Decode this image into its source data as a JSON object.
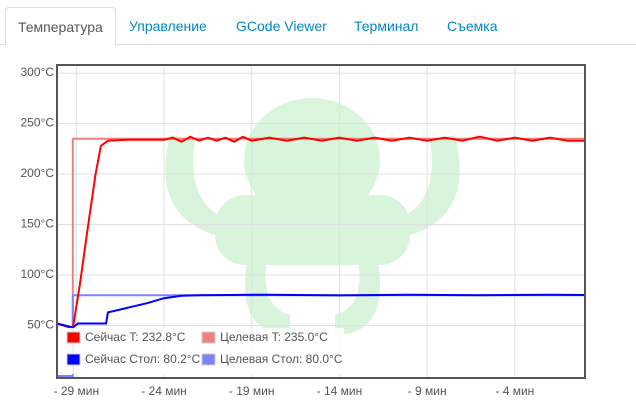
{
  "tabs": [
    "Температура",
    "Управление",
    "GCode Viewer",
    "Терминал",
    "Съемка"
  ],
  "chart_data": {
    "type": "line",
    "xlim": [
      -30.1,
      0
    ],
    "ylim": [
      -2,
      308
    ],
    "xticks": [
      {
        "value": -29,
        "label": "- 29 мин"
      },
      {
        "value": -24,
        "label": "- 24 мин"
      },
      {
        "value": -19,
        "label": "- 19 мин"
      },
      {
        "value": -14,
        "label": "- 14 мин"
      },
      {
        "value": -9,
        "label": "- 9 мин"
      },
      {
        "value": -4,
        "label": "- 4 мин"
      }
    ],
    "yticks": [
      {
        "value": 50,
        "label": "50°C"
      },
      {
        "value": 100,
        "label": "100°C"
      },
      {
        "value": 150,
        "label": "150°C"
      },
      {
        "value": 200,
        "label": "200°C"
      },
      {
        "value": 250,
        "label": "250°C"
      },
      {
        "value": 300,
        "label": "300°C"
      }
    ],
    "grid": true,
    "series": [
      {
        "name": "Сейчас T: 232.8°C",
        "color": "#ff0000",
        "x": [
          -30.1,
          -29.2,
          -28.8,
          -28.4,
          -27.9,
          -27.6,
          -27.2,
          -26,
          -24,
          -23.5,
          -23,
          -22.5,
          -22,
          -21.5,
          -21,
          -20.5,
          -20,
          -19.5,
          -19,
          -18,
          -17,
          -16,
          -15,
          -14,
          -13,
          -12,
          -11,
          -10,
          -9,
          -8,
          -7,
          -6,
          -5,
          -4,
          -3,
          -2,
          -1,
          0
        ],
        "values": [
          52,
          47,
          90,
          140,
          200,
          228,
          233,
          234,
          234,
          236,
          232,
          237,
          233,
          236,
          233,
          236,
          232,
          237,
          233,
          236,
          233,
          236,
          233,
          236,
          233,
          236,
          233,
          236,
          233,
          236,
          233,
          237,
          233,
          236,
          233,
          236,
          233,
          233
        ]
      },
      {
        "name": "Целевая T: 235.0°C",
        "color": "#f08080",
        "x": [
          -30.1,
          -29.2,
          -29.2,
          0
        ],
        "values": [
          0,
          0,
          235,
          235
        ]
      },
      {
        "name": "Сейчас Стол: 80.2°C",
        "color": "#0000ff",
        "x": [
          -30.1,
          -29.2,
          -28.9,
          -27.3,
          -27.2,
          -25,
          -24,
          -23,
          -22,
          -18,
          -14,
          -10,
          -6,
          -2,
          0
        ],
        "values": [
          52,
          48,
          52,
          52,
          63,
          72,
          77,
          79.5,
          80,
          80.5,
          79.8,
          80.4,
          79.9,
          80.5,
          80.2
        ]
      },
      {
        "name": "Целевая Стол: 80.0°C",
        "color": "#8080ff",
        "x": [
          -30.1,
          -29.2,
          -29.2,
          0
        ],
        "values": [
          0,
          0,
          80,
          80
        ]
      }
    ]
  }
}
